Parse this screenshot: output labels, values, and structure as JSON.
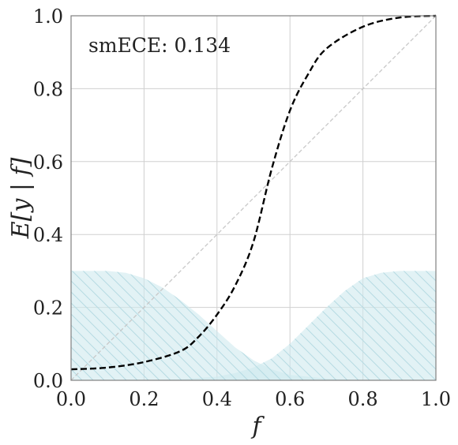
{
  "chart_data": {
    "type": "line",
    "annotation": "smECE: 0.134",
    "xlabel": "f",
    "ylabel": "E[y | f]",
    "xlim": [
      0.0,
      1.0
    ],
    "ylim": [
      0.0,
      1.0
    ],
    "xticks": [
      "0.0",
      "0.2",
      "0.4",
      "0.6",
      "0.8",
      "1.0"
    ],
    "yticks": [
      "0.0",
      "0.2",
      "0.4",
      "0.6",
      "0.8",
      "1.0"
    ],
    "grid": true,
    "colors": {
      "curve": "#000000",
      "diagonal": "#c8c8c8",
      "density_fill": "#cfe9ef",
      "grid": "#d0d0d0",
      "frame": "#808080"
    },
    "series": [
      {
        "style": "dashed",
        "x": [
          0.0,
          0.1,
          0.2,
          0.3,
          0.35,
          0.4,
          0.45,
          0.5,
          0.55,
          0.6,
          0.65,
          0.7,
          0.8,
          0.9,
          1.0
        ],
        "y": [
          0.03,
          0.035,
          0.05,
          0.08,
          0.12,
          0.18,
          0.26,
          0.38,
          0.58,
          0.74,
          0.84,
          0.91,
          0.97,
          0.995,
          1.0
        ]
      }
    ],
    "density_0": {
      "x": [
        0.0,
        0.05,
        0.1,
        0.15,
        0.2,
        0.25,
        0.3,
        0.35,
        0.4,
        0.45,
        0.5,
        0.55,
        0.6,
        0.7,
        0.8,
        0.9,
        1.0
      ],
      "y": [
        0.3,
        0.3,
        0.3,
        0.295,
        0.28,
        0.255,
        0.22,
        0.18,
        0.135,
        0.09,
        0.055,
        0.03,
        0.015,
        0.005,
        0.0,
        0.0,
        0.0
      ]
    },
    "density_1": {
      "x": [
        0.0,
        0.2,
        0.3,
        0.4,
        0.45,
        0.5,
        0.55,
        0.6,
        0.65,
        0.7,
        0.75,
        0.8,
        0.85,
        0.9,
        0.95,
        1.0
      ],
      "y": [
        0.0,
        0.0,
        0.003,
        0.01,
        0.02,
        0.035,
        0.06,
        0.1,
        0.15,
        0.2,
        0.245,
        0.28,
        0.295,
        0.3,
        0.3,
        0.3
      ]
    }
  }
}
